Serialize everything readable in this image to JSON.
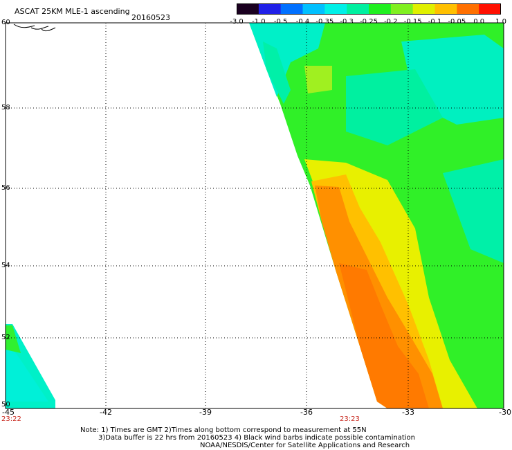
{
  "header": {
    "title": "ASCAT 25KM MLE-1 ascending",
    "date": "20160523"
  },
  "colorbar": {
    "labels": [
      "-3.0",
      "-1.0",
      "-0.5",
      "-0.4",
      "-0.35",
      "-0.3",
      "-0.25",
      "-0.2",
      "-0.15",
      "-0.1",
      "-0.05",
      "0.0",
      "1.0"
    ],
    "colors": [
      "#1a0020",
      "#4a0090",
      "#2020e8",
      "#0070ff",
      "#00c0ff",
      "#00f0e8",
      "#00f0a0",
      "#20f020",
      "#80f020",
      "#e0f000",
      "#ffc000",
      "#ff7000",
      "#ff1000"
    ]
  },
  "axes": {
    "lat_labels": [
      "60",
      "58",
      "56",
      "54",
      "52",
      "50"
    ],
    "lon_labels": [
      "-45",
      "-42",
      "-39",
      "-36",
      "-33",
      "-30"
    ],
    "time_labels": [
      "23:22",
      "23:23"
    ]
  },
  "footer": {
    "line1": "Note: 1) Times are GMT 2)Times along bottom correspond to measurement at 55N",
    "line2": "3)Data buffer is 22 hrs from 20160523 4) Black wind barbs indicate possible contamination",
    "line3": "NOAA/NESDIS/Center for Satellite Applications and Research"
  },
  "map": {
    "swath_colors": {
      "cyan": "#00f0d8",
      "aqua": "#00f0a0",
      "green": "#30f030",
      "lime": "#90f020",
      "yellow": "#e8f000",
      "orange": "#ff9000",
      "dark_orange": "#ff7800"
    }
  }
}
